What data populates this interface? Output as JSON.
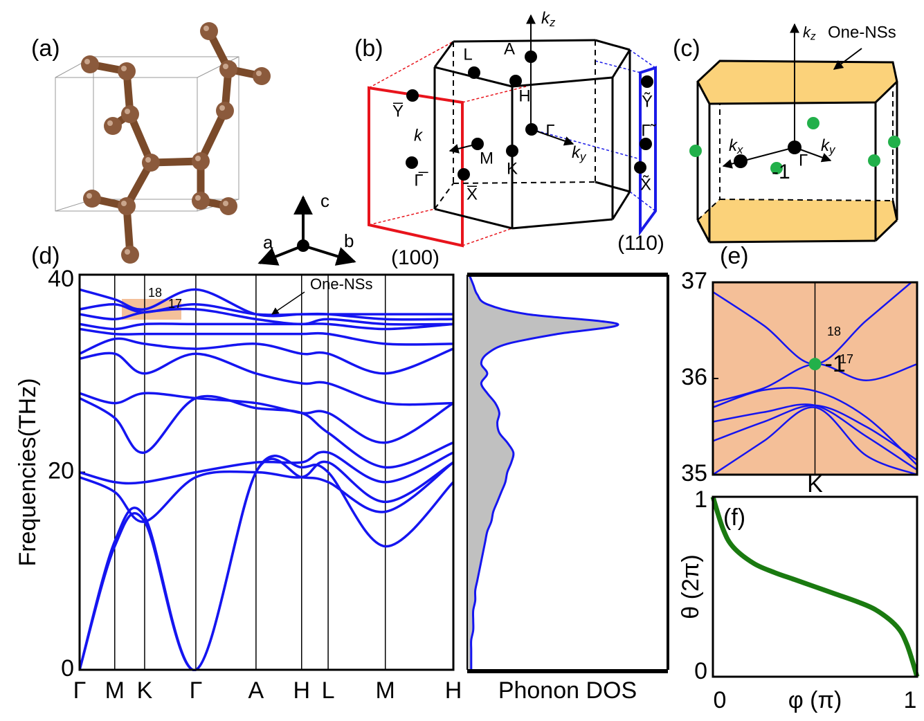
{
  "crystal": {
    "label": "(a)",
    "axes": [
      "a",
      "b",
      "c"
    ]
  },
  "bz_projection": {
    "label": "(b)",
    "kz": {
      "k": "k",
      "sub": "z"
    },
    "ky": {
      "k": "k",
      "sub": "y"
    },
    "k": "k",
    "points": [
      "A",
      "L",
      "H",
      "M",
      "K",
      "Γ"
    ],
    "surface_100": {
      "points": [
        "Y̅",
        "Γ̅",
        "X̅"
      ],
      "name": "(100)"
    },
    "surface_110": {
      "points": [
        "Ỹ",
        "Γ̃",
        "X̃"
      ],
      "name": "(110)"
    }
  },
  "bz_nodal": {
    "label": "(c)",
    "kz": {
      "k": "k",
      "sub": "z"
    },
    "kx": {
      "k": "k",
      "sub": "x"
    },
    "ky": {
      "k": "k",
      "sub": "y"
    },
    "annotation": "One-NSs",
    "gamma": "Γ",
    "charge": "-1"
  },
  "chart_data": [
    {
      "type": "line",
      "panel": "(d)",
      "ylabel": "Frequencies(THz)",
      "x": [
        0,
        0.094,
        0.174,
        0.311,
        0.472,
        0.594,
        0.665,
        0.818,
        1.0
      ],
      "xlim": [
        0,
        1.0
      ],
      "xticks": [
        {
          "value": 0,
          "label": "Γ"
        },
        {
          "value": 0.094,
          "label": "M"
        },
        {
          "value": 0.174,
          "label": "K"
        },
        {
          "value": 0.311,
          "label": "Γ"
        },
        {
          "value": 0.472,
          "label": "A"
        },
        {
          "value": 0.594,
          "label": "H"
        },
        {
          "value": 0.665,
          "label": "L"
        },
        {
          "value": 0.818,
          "label": "M"
        },
        {
          "value": 1.0,
          "label": "H"
        }
      ],
      "ylim": [
        0,
        40
      ],
      "yticks": [
        0,
        20,
        40
      ],
      "series": [
        {
          "color": "#1515f0",
          "values": [
            0,
            12.5,
            15,
            0,
            20,
            20.5,
            20,
            12.5,
            19
          ]
        },
        {
          "color": "#1515f0",
          "values": [
            0,
            13,
            15.5,
            0,
            20,
            19.5,
            19,
            16,
            21
          ]
        },
        {
          "color": "#1515f0",
          "values": [
            19.5,
            18,
            15,
            19.5,
            20,
            19.5,
            21,
            17,
            21
          ]
        },
        {
          "color": "#1515f0",
          "values": [
            20,
            19,
            19,
            20,
            21,
            21,
            22,
            19,
            22
          ]
        },
        {
          "color": "#1515f0",
          "values": [
            27.5,
            25.5,
            22,
            27.5,
            26.5,
            26,
            24,
            20.5,
            23
          ]
        },
        {
          "color": "#1515f0",
          "values": [
            28,
            27,
            28,
            27.5,
            27,
            26,
            26,
            23,
            27
          ]
        },
        {
          "color": "#1515f0",
          "values": [
            31.5,
            32,
            30,
            32,
            30,
            29,
            29,
            27,
            27
          ]
        },
        {
          "color": "#1515f0",
          "values": [
            32,
            33.5,
            33,
            32.5,
            33,
            32,
            32,
            30,
            32.5
          ]
        },
        {
          "color": "#1515f0",
          "values": [
            34.5,
            34,
            34,
            34,
            34,
            34,
            34,
            33,
            33
          ]
        },
        {
          "color": "#1515f0",
          "values": [
            35,
            34.5,
            35,
            35,
            35,
            35,
            35,
            34.5,
            35
          ]
        },
        {
          "color": "#1515f0",
          "values": [
            36,
            35.5,
            36.2,
            36.5,
            35.5,
            35,
            35.5,
            35,
            35
          ]
        },
        {
          "color": "#1515f0",
          "values": [
            36.5,
            37,
            36.2,
            37,
            36,
            36,
            36,
            35.5,
            35.5
          ]
        },
        {
          "color": "#1515f0",
          "values": [
            38.5,
            37.5,
            36.5,
            38.5,
            36,
            36,
            36,
            36,
            36
          ]
        }
      ],
      "highlight_color": "#f4c09a",
      "annotations": [
        "One-NSs",
        "18",
        "17"
      ]
    },
    {
      "type": "area",
      "xlabel": "Phonon DOS",
      "frequencies": [
        0,
        1,
        2,
        3,
        4,
        5,
        6,
        7,
        8,
        9,
        10,
        11,
        12,
        13,
        14,
        15,
        16,
        17,
        18,
        19,
        20,
        21,
        22,
        23,
        24,
        25,
        26,
        27,
        28,
        29,
        30,
        31,
        32,
        33,
        34,
        35,
        36,
        37,
        38,
        39,
        40
      ],
      "values": [
        0.02,
        0.02,
        0.02,
        0.02,
        0.03,
        0.03,
        0.03,
        0.04,
        0.04,
        0.05,
        0.06,
        0.07,
        0.08,
        0.09,
        0.1,
        0.12,
        0.13,
        0.15,
        0.17,
        0.19,
        0.2,
        0.22,
        0.23,
        0.2,
        0.16,
        0.15,
        0.16,
        0.14,
        0.1,
        0.07,
        0.1,
        0.07,
        0.1,
        0.2,
        0.45,
        0.75,
        0.3,
        0.1,
        0.05,
        0.03,
        0.01
      ],
      "xlim": [
        0,
        1
      ],
      "ylim": [
        0,
        40
      ],
      "color": "#1515f0",
      "fill": "#c0c0c0"
    },
    {
      "type": "line",
      "panel": "(e)",
      "x": [
        -1,
        -0.5,
        0,
        0.5,
        1
      ],
      "xlim": [
        -1,
        1
      ],
      "xticks": [
        {
          "value": 0,
          "label": "K"
        }
      ],
      "ylim": [
        35,
        37
      ],
      "yticks": [
        35,
        36,
        37
      ],
      "series": [
        {
          "color": "#1515f0",
          "values": [
            36.9,
            36.55,
            36.15,
            36.6,
            37.05
          ]
        },
        {
          "color": "#1515f0",
          "values": [
            35.75,
            35.9,
            36.15,
            35.98,
            36.15
          ]
        },
        {
          "color": "#1515f0",
          "values": [
            35.7,
            35.88,
            35.87,
            35.6,
            35.1
          ]
        },
        {
          "color": "#1515f0",
          "values": [
            35.55,
            35.65,
            35.72,
            35.4,
            35.05
          ]
        },
        {
          "color": "#1515f0",
          "values": [
            35.35,
            35.55,
            35.72,
            35.5,
            35.15
          ]
        },
        {
          "color": "#1515f0",
          "values": [
            35.0,
            35.35,
            35.7,
            35.2,
            35.0
          ]
        }
      ],
      "background": "#f4bf98",
      "node": {
        "x": 0,
        "y": 36.15,
        "label": "-1",
        "color": "#22b04a"
      },
      "band_labels": [
        "18",
        "17"
      ]
    },
    {
      "type": "line",
      "panel": "(f)",
      "xlabel": "φ (π)",
      "ylabel": "θ (2π)",
      "x": [
        0,
        0.05,
        0.1,
        0.2,
        0.3,
        0.4,
        0.5,
        0.6,
        0.7,
        0.8,
        0.9,
        0.95,
        1
      ],
      "values": [
        1,
        0.82,
        0.72,
        0.63,
        0.58,
        0.54,
        0.5,
        0.46,
        0.42,
        0.37,
        0.28,
        0.18,
        0
      ],
      "xlim": [
        0,
        1
      ],
      "ylim": [
        0,
        1
      ],
      "xticks": [
        0,
        1
      ],
      "yticks": [
        0,
        1
      ],
      "color": "#1a7a10"
    }
  ]
}
